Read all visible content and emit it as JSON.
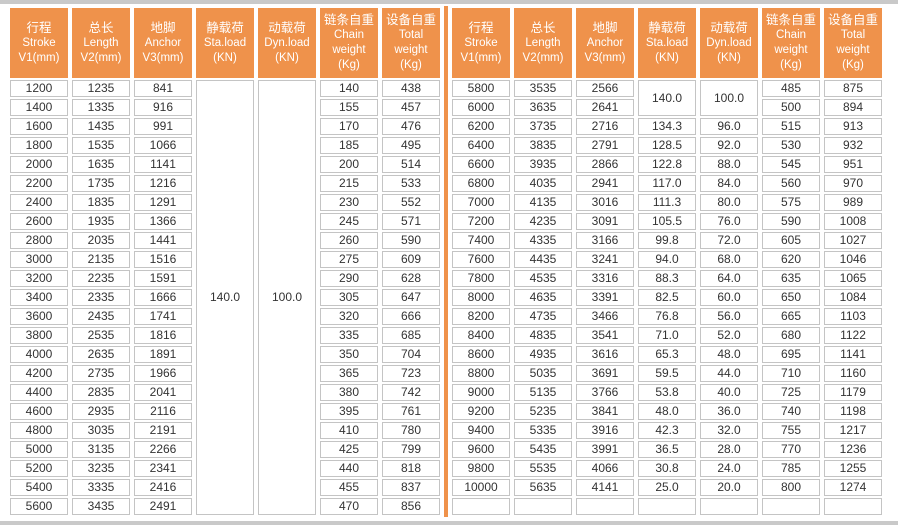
{
  "colors": {
    "header_bg": "#EF924B",
    "divider": "#EF924B",
    "cell_border": "#C4C4C4",
    "rule_line": "#C9C9C9",
    "header_text": "#FFFFFF",
    "cell_text": "#333333"
  },
  "table": {
    "headers": [
      {
        "lines": [
          "行程",
          "Stroke",
          "V1(mm)"
        ]
      },
      {
        "lines": [
          "总长",
          "Length",
          "V2(mm)"
        ]
      },
      {
        "lines": [
          "地脚",
          "Anchor",
          "V3(mm)"
        ]
      },
      {
        "lines": [
          "静载荷",
          "Sta.load",
          "(KN)"
        ]
      },
      {
        "lines": [
          "动载荷",
          "Dyn.load",
          "(KN)"
        ]
      },
      {
        "lines": [
          "链条自重",
          "Chain",
          "weight",
          "(Kg)"
        ]
      },
      {
        "lines": [
          "设备自重",
          "Total",
          "weight",
          "(Kg)"
        ]
      }
    ],
    "left": {
      "merged_sta_load": "140.0",
      "merged_dyn_load": "100.0",
      "rows": [
        [
          "1200",
          "1235",
          "841",
          "140",
          "438"
        ],
        [
          "1400",
          "1335",
          "916",
          "155",
          "457"
        ],
        [
          "1600",
          "1435",
          "991",
          "170",
          "476"
        ],
        [
          "1800",
          "1535",
          "1066",
          "185",
          "495"
        ],
        [
          "2000",
          "1635",
          "1141",
          "200",
          "514"
        ],
        [
          "2200",
          "1735",
          "1216",
          "215",
          "533"
        ],
        [
          "2400",
          "1835",
          "1291",
          "230",
          "552"
        ],
        [
          "2600",
          "1935",
          "1366",
          "245",
          "571"
        ],
        [
          "2800",
          "2035",
          "1441",
          "260",
          "590"
        ],
        [
          "3000",
          "2135",
          "1516",
          "275",
          "609"
        ],
        [
          "3200",
          "2235",
          "1591",
          "290",
          "628"
        ],
        [
          "3400",
          "2335",
          "1666",
          "305",
          "647"
        ],
        [
          "3600",
          "2435",
          "1741",
          "320",
          "666"
        ],
        [
          "3800",
          "2535",
          "1816",
          "335",
          "685"
        ],
        [
          "4000",
          "2635",
          "1891",
          "350",
          "704"
        ],
        [
          "4200",
          "2735",
          "1966",
          "365",
          "723"
        ],
        [
          "4400",
          "2835",
          "2041",
          "380",
          "742"
        ],
        [
          "4600",
          "2935",
          "2116",
          "395",
          "761"
        ],
        [
          "4800",
          "3035",
          "2191",
          "410",
          "780"
        ],
        [
          "5000",
          "3135",
          "2266",
          "425",
          "799"
        ],
        [
          "5200",
          "3235",
          "2341",
          "440",
          "818"
        ],
        [
          "5400",
          "3335",
          "2416",
          "455",
          "837"
        ],
        [
          "5600",
          "3435",
          "2491",
          "470",
          "856"
        ]
      ]
    },
    "right": {
      "merged_sta_load": "140.0",
      "merged_dyn_load": "100.0",
      "merged_rowspan": 2,
      "rows": [
        [
          "5800",
          "3535",
          "2566",
          null,
          null,
          "485",
          "875"
        ],
        [
          "6000",
          "3635",
          "2641",
          null,
          null,
          "500",
          "894"
        ],
        [
          "6200",
          "3735",
          "2716",
          "134.3",
          "96.0",
          "515",
          "913"
        ],
        [
          "6400",
          "3835",
          "2791",
          "128.5",
          "92.0",
          "530",
          "932"
        ],
        [
          "6600",
          "3935",
          "2866",
          "122.8",
          "88.0",
          "545",
          "951"
        ],
        [
          "6800",
          "4035",
          "2941",
          "117.0",
          "84.0",
          "560",
          "970"
        ],
        [
          "7000",
          "4135",
          "3016",
          "111.3",
          "80.0",
          "575",
          "989"
        ],
        [
          "7200",
          "4235",
          "3091",
          "105.5",
          "76.0",
          "590",
          "1008"
        ],
        [
          "7400",
          "4335",
          "3166",
          "99.8",
          "72.0",
          "605",
          "1027"
        ],
        [
          "7600",
          "4435",
          "3241",
          "94.0",
          "68.0",
          "620",
          "1046"
        ],
        [
          "7800",
          "4535",
          "3316",
          "88.3",
          "64.0",
          "635",
          "1065"
        ],
        [
          "8000",
          "4635",
          "3391",
          "82.5",
          "60.0",
          "650",
          "1084"
        ],
        [
          "8200",
          "4735",
          "3466",
          "76.8",
          "56.0",
          "665",
          "1103"
        ],
        [
          "8400",
          "4835",
          "3541",
          "71.0",
          "52.0",
          "680",
          "1122"
        ],
        [
          "8600",
          "4935",
          "3616",
          "65.3",
          "48.0",
          "695",
          "1141"
        ],
        [
          "8800",
          "5035",
          "3691",
          "59.5",
          "44.0",
          "710",
          "1160"
        ],
        [
          "9000",
          "5135",
          "3766",
          "53.8",
          "40.0",
          "725",
          "1179"
        ],
        [
          "9200",
          "5235",
          "3841",
          "48.0",
          "36.0",
          "740",
          "1198"
        ],
        [
          "9400",
          "5335",
          "3916",
          "42.3",
          "32.0",
          "755",
          "1217"
        ],
        [
          "9600",
          "5435",
          "3991",
          "36.5",
          "28.0",
          "770",
          "1236"
        ],
        [
          "9800",
          "5535",
          "4066",
          "30.8",
          "24.0",
          "785",
          "1255"
        ],
        [
          "10000",
          "5635",
          "4141",
          "25.0",
          "20.0",
          "800",
          "1274"
        ],
        [
          "",
          "",
          "",
          "",
          "",
          "",
          ""
        ]
      ]
    }
  }
}
